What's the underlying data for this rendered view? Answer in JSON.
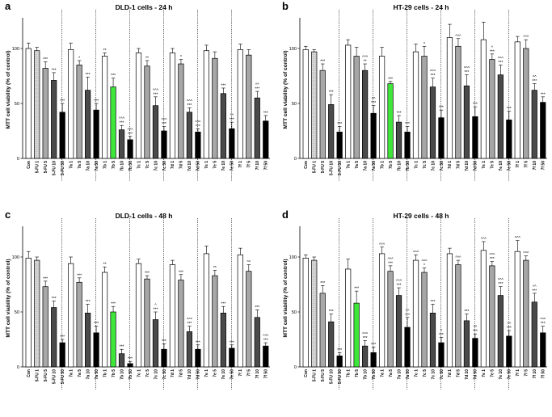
{
  "figure": {
    "description_free": true
  },
  "chart_data": [
    {
      "panel": "a",
      "type": "bar",
      "title": "DLD-1 cells - 24 h",
      "ylabel": "MTT cell viability (% of control)",
      "ylim": [
        0,
        125
      ],
      "yticks": [
        0,
        50,
        100
      ],
      "categories": [
        "Con",
        "5-FU 1",
        "5-FU 5",
        "5-FU 10",
        "5-FU 50",
        "7a 1",
        "7a 5",
        "7a 10",
        "7a 50",
        "7b 1",
        "7b 5",
        "7b 10",
        "7b 50",
        "7c 1",
        "7c 5",
        "7c 10",
        "7c 50",
        "7d 1",
        "7d 5",
        "7d 10",
        "7d 50",
        "7e 1",
        "7e 5",
        "7e 10",
        "7e 50",
        "7f 1",
        "7f 5",
        "7f 10",
        "7f 50"
      ],
      "values": [
        100,
        98,
        82,
        71,
        42,
        99,
        85,
        62,
        44,
        93,
        65,
        26,
        17,
        96,
        84,
        48,
        25,
        96,
        86,
        42,
        24,
        98,
        91,
        59,
        27,
        99,
        94,
        55,
        34
      ],
      "errors": [
        5,
        3,
        6,
        7,
        8,
        6,
        4,
        12,
        6,
        3,
        8,
        4,
        3,
        4,
        5,
        8,
        4,
        4,
        4,
        4,
        3,
        5,
        6,
        5,
        6,
        5,
        5,
        6,
        5
      ],
      "significance": [
        "",
        "",
        "***",
        "***",
        "***",
        "",
        "*",
        "***",
        "***",
        "**",
        "***",
        "^^^\n***",
        "^^^\n***",
        "",
        "**",
        "^^^\n***",
        "^^^\n***",
        "",
        "*",
        "^^^\n***",
        "^^^\n***",
        "",
        "",
        "***",
        "^^\n***",
        "",
        "",
        "^^\n***",
        "***"
      ]
    },
    {
      "panel": "b",
      "type": "bar",
      "title": "HT-29 cells - 24 h",
      "ylabel": "MTT cell viability (% of control)",
      "ylim": [
        0,
        125
      ],
      "yticks": [
        0,
        50,
        100
      ],
      "categories": [
        "Con",
        "5-FU 1",
        "5-FU 5",
        "5-FU 10",
        "5-FU 50",
        "7a 1",
        "7a 5",
        "7a 10",
        "7a 50",
        "7b 1",
        "7b 5",
        "7b 10",
        "7b 50",
        "7c 1",
        "7c 5",
        "7c 10",
        "7c 50",
        "7d 1",
        "7d 5",
        "7d 10",
        "7d 50",
        "7e 1",
        "7e 5",
        "7e 10",
        "7e 50",
        "7f 1",
        "7f 5",
        "7f 10",
        "7f 50"
      ],
      "values": [
        99,
        97,
        80,
        49,
        24,
        103,
        93,
        80,
        41,
        93,
        68,
        33,
        24,
        97,
        93,
        65,
        37,
        110,
        102,
        66,
        38,
        108,
        90,
        76,
        35,
        106,
        100,
        62,
        51
      ],
      "errors": [
        3,
        2,
        6,
        9,
        5,
        5,
        8,
        6,
        7,
        8,
        2,
        6,
        5,
        7,
        9,
        8,
        7,
        12,
        7,
        10,
        9,
        16,
        5,
        9,
        8,
        5,
        8,
        6,
        5
      ],
      "significance": [
        "",
        "",
        "***",
        "***",
        "***",
        "",
        "",
        "^^^\n**",
        "^^\n***",
        "",
        "***",
        "***",
        "***",
        "",
        "^",
        "^^^\n***",
        "***",
        "",
        "^^^",
        "^^^\n***",
        "***",
        "",
        "^\n***",
        "^^^\n***",
        "***",
        "",
        "^^^",
        "^^\n***",
        "***"
      ]
    },
    {
      "panel": "c",
      "type": "bar",
      "title": "DLD-1 cells - 48 h",
      "ylabel": "MTT cell viability (% of control)",
      "ylim": [
        0,
        125
      ],
      "yticks": [
        0,
        50,
        100
      ],
      "categories": [
        "Con",
        "5-FU 1",
        "5-FU 5",
        "5-FU 10",
        "5-FU 50",
        "7a 1",
        "7a 5",
        "7a 10",
        "7a 50",
        "7b 1",
        "7b 5",
        "7b 10",
        "7b 50",
        "7c 1",
        "7c 5",
        "7c 10",
        "7c 50",
        "7d 1",
        "7d 5",
        "7d 10",
        "7d 50",
        "7e 1",
        "7e 5",
        "7e 10",
        "7e 50",
        "7f 1",
        "7f 5",
        "7f 10",
        "7f 50"
      ],
      "values": [
        99,
        97,
        73,
        54,
        22,
        94,
        77,
        49,
        31,
        86,
        50,
        12,
        3,
        94,
        80,
        43,
        16,
        93,
        79,
        32,
        16,
        103,
        83,
        49,
        17,
        102,
        87,
        45,
        19
      ],
      "errors": [
        6,
        3,
        5,
        6,
        3,
        6,
        4,
        8,
        6,
        5,
        5,
        4,
        2,
        4,
        3,
        7,
        5,
        4,
        5,
        5,
        4,
        7,
        5,
        6,
        3,
        6,
        6,
        7,
        3
      ],
      "significance": [
        "",
        "",
        "***",
        "***",
        "***",
        "",
        "***",
        "***",
        "***",
        "**",
        "***",
        "***",
        "***",
        "",
        "***",
        "^\n***",
        "***",
        "",
        "***",
        "^^^\n***",
        "***",
        "",
        "**",
        "***",
        "***",
        "",
        "^^",
        "***",
        "^^^\n***"
      ]
    },
    {
      "panel": "d",
      "type": "bar",
      "title": "HT-29 cells - 48 h",
      "ylabel": "MTT cell viability (% of control)",
      "ylim": [
        0,
        125
      ],
      "yticks": [
        0,
        50,
        100
      ],
      "categories": [
        "Con",
        "5-FU 1",
        "5-FU 5",
        "5-FU 10",
        "5-FU 50",
        "7b 1",
        "7b 5",
        "7b 10",
        "7b 50",
        "7a 1",
        "7a 5",
        "7a 10",
        "7a 50",
        "7c 1",
        "7c 5",
        "7c 10",
        "7c 50",
        "7d 1",
        "7d 5",
        "7d 10",
        "7d 50",
        "7e 1",
        "7e 5",
        "7e 10",
        "7e 50",
        "7f 1",
        "7f 5",
        "7f 10",
        "7f 50"
      ],
      "values": [
        99,
        97,
        67,
        41,
        10,
        89,
        58,
        19,
        13,
        103,
        87,
        65,
        36,
        97,
        86,
        49,
        22,
        103,
        93,
        42,
        26,
        106,
        92,
        65,
        28,
        105,
        97,
        59,
        31
      ],
      "errors": [
        3,
        3,
        7,
        7,
        3,
        9,
        11,
        5,
        5,
        6,
        5,
        7,
        9,
        5,
        4,
        8,
        5,
        5,
        4,
        6,
        4,
        8,
        4,
        8,
        5,
        10,
        4,
        8,
        6
      ],
      "significance": [
        "",
        "",
        "***",
        "***",
        "***",
        "",
        "***",
        "^^^\n***",
        "***",
        "^^^",
        "^^^\n***",
        "^^^\n***",
        "^^\n***",
        "^^^",
        "^^^\n*",
        "***",
        "^\n***",
        "",
        "^^^",
        "***",
        "^^\n***",
        "^^^",
        "^^^\n***",
        "^^^\n***",
        "^^\n***",
        "^^^",
        "^^^",
        "^^\n***",
        "^^^\n***"
      ]
    }
  ]
}
